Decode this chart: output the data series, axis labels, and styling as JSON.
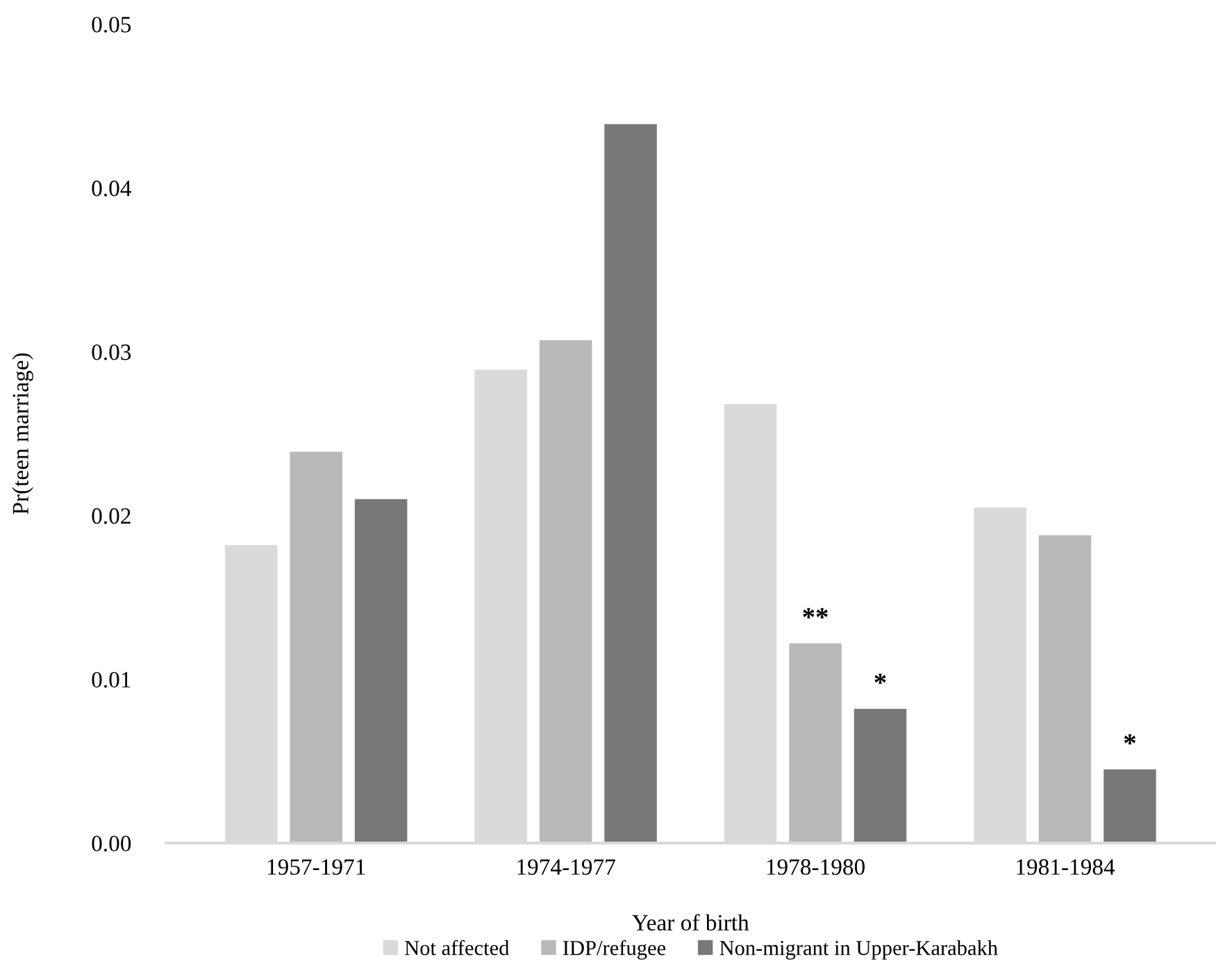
{
  "chart_data": {
    "type": "bar",
    "xlabel": "Year of birth",
    "ylabel": "Pr(teen marriage)",
    "categories": [
      "1957-1971",
      "1974-1977",
      "1978-1980",
      "1981-1984"
    ],
    "series": [
      {
        "name": "Not affected",
        "color": "#d9dad9",
        "values": [
          0.0182,
          0.0289,
          0.0268,
          0.0205
        ]
      },
      {
        "name": "IDP/refugee",
        "color": "#b9b9b9",
        "values": [
          0.0239,
          0.0307,
          0.0122,
          0.0188
        ]
      },
      {
        "name": "Non-migrant in Upper-Karabakh",
        "color": "#787878",
        "values": [
          0.021,
          0.0439,
          0.0082,
          0.0045
        ]
      }
    ],
    "ylim": [
      0,
      0.05
    ],
    "yticks": [
      {
        "value": 0,
        "label": "0.00"
      },
      {
        "value": 0.01,
        "label": "0.01"
      },
      {
        "value": 0.02,
        "label": "0.02"
      },
      {
        "value": 0.03,
        "label": "0.03"
      },
      {
        "value": 0.04,
        "label": "0.04"
      },
      {
        "value": 0.05,
        "label": "0.05"
      }
    ],
    "annotations": [
      {
        "text": "**",
        "x": "1978-1980",
        "y": 0.0122
      },
      "*",
      "*"
    ],
    "grid": false,
    "legend": "bottom"
  }
}
